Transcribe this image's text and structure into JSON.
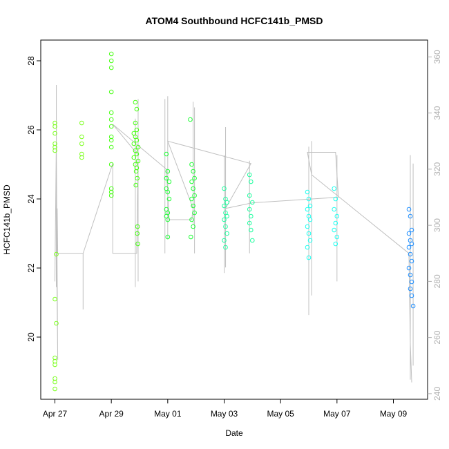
{
  "chart_data": {
    "type": "scatter",
    "title": "ATOM4 Southbound HCFC141b_PMSD",
    "xlabel": "Date",
    "ylabel": "HCFC141b_PMSD",
    "ylim": [
      18.2,
      28.6
    ],
    "y2lim": [
      238,
      366
    ],
    "y2label": "",
    "x_ticks": [
      "Apr 27",
      "Apr 29",
      "May 01",
      "May 03",
      "May 05",
      "May 07",
      "May 09"
    ],
    "y_ticks": [
      20,
      22,
      24,
      26,
      28
    ],
    "y2_ticks": [
      240,
      260,
      280,
      300,
      320,
      340,
      360
    ],
    "grid": false,
    "legend": "none",
    "colors": {
      "axis": "#000000",
      "right_axis": "#b0b0b0",
      "line": "#c0c0c0"
    },
    "series": [
      {
        "name": "",
        "color": "#7cff1f",
        "points": [
          {
            "x": 0.0,
            "y": 26.2
          },
          {
            "x": 0.0,
            "y": 26.1
          },
          {
            "x": 0.0,
            "y": 25.9
          },
          {
            "x": 0.0,
            "y": 25.6
          },
          {
            "x": 0.0,
            "y": 25.5
          },
          {
            "x": 0.0,
            "y": 25.4
          },
          {
            "x": 0.05,
            "y": 22.4
          },
          {
            "x": 0.0,
            "y": 21.1
          },
          {
            "x": 0.05,
            "y": 20.4
          },
          {
            "x": 0.0,
            "y": 19.4
          },
          {
            "x": 0.0,
            "y": 19.3
          },
          {
            "x": 0.0,
            "y": 19.2
          },
          {
            "x": 0.0,
            "y": 18.8
          },
          {
            "x": 0.0,
            "y": 18.7
          },
          {
            "x": 0.0,
            "y": 18.5
          },
          {
            "x": 0.95,
            "y": 26.2
          },
          {
            "x": 0.95,
            "y": 25.8
          },
          {
            "x": 0.95,
            "y": 25.6
          },
          {
            "x": 0.95,
            "y": 25.3
          },
          {
            "x": 0.95,
            "y": 25.2
          }
        ]
      },
      {
        "name": "",
        "color": "#48ff14",
        "points": [
          {
            "x": 2.0,
            "y": 28.2
          },
          {
            "x": 2.0,
            "y": 28.0
          },
          {
            "x": 2.0,
            "y": 27.8
          },
          {
            "x": 2.0,
            "y": 27.1
          },
          {
            "x": 2.0,
            "y": 26.5
          },
          {
            "x": 2.0,
            "y": 26.3
          },
          {
            "x": 2.0,
            "y": 26.1
          },
          {
            "x": 2.0,
            "y": 25.8
          },
          {
            "x": 2.0,
            "y": 25.7
          },
          {
            "x": 2.0,
            "y": 25.5
          },
          {
            "x": 2.0,
            "y": 25.0
          },
          {
            "x": 2.0,
            "y": 24.3
          },
          {
            "x": 2.0,
            "y": 24.2
          },
          {
            "x": 2.0,
            "y": 24.1
          },
          {
            "x": 2.85,
            "y": 26.8
          },
          {
            "x": 2.9,
            "y": 26.6
          },
          {
            "x": 2.85,
            "y": 26.2
          },
          {
            "x": 2.9,
            "y": 26.0
          },
          {
            "x": 2.8,
            "y": 25.9
          },
          {
            "x": 2.85,
            "y": 25.8
          },
          {
            "x": 2.9,
            "y": 25.7
          },
          {
            "x": 2.8,
            "y": 25.6
          },
          {
            "x": 2.95,
            "y": 25.5
          },
          {
            "x": 2.85,
            "y": 25.4
          },
          {
            "x": 2.9,
            "y": 25.3
          },
          {
            "x": 2.8,
            "y": 25.2
          },
          {
            "x": 2.95,
            "y": 25.1
          },
          {
            "x": 2.85,
            "y": 25.0
          },
          {
            "x": 2.9,
            "y": 24.9
          },
          {
            "x": 2.88,
            "y": 24.8
          },
          {
            "x": 2.92,
            "y": 24.6
          },
          {
            "x": 2.87,
            "y": 24.4
          },
          {
            "x": 2.93,
            "y": 23.2
          },
          {
            "x": 2.92,
            "y": 23.0
          },
          {
            "x": 2.94,
            "y": 22.7
          }
        ]
      },
      {
        "name": "",
        "color": "#1fff36",
        "points": [
          {
            "x": 3.95,
            "y": 25.3
          },
          {
            "x": 4.0,
            "y": 24.8
          },
          {
            "x": 3.95,
            "y": 24.6
          },
          {
            "x": 4.05,
            "y": 24.5
          },
          {
            "x": 3.95,
            "y": 24.3
          },
          {
            "x": 4.0,
            "y": 24.2
          },
          {
            "x": 4.05,
            "y": 24.0
          },
          {
            "x": 3.95,
            "y": 23.7
          },
          {
            "x": 4.0,
            "y": 23.6
          },
          {
            "x": 3.95,
            "y": 23.5
          },
          {
            "x": 4.0,
            "y": 23.4
          },
          {
            "x": 4.0,
            "y": 22.9
          },
          {
            "x": 4.8,
            "y": 26.3
          },
          {
            "x": 4.85,
            "y": 25.0
          },
          {
            "x": 4.9,
            "y": 24.8
          },
          {
            "x": 4.95,
            "y": 24.6
          },
          {
            "x": 4.85,
            "y": 24.5
          },
          {
            "x": 4.9,
            "y": 24.3
          },
          {
            "x": 4.95,
            "y": 24.1
          },
          {
            "x": 4.85,
            "y": 24.0
          },
          {
            "x": 4.9,
            "y": 23.8
          },
          {
            "x": 4.95,
            "y": 23.6
          },
          {
            "x": 4.85,
            "y": 23.4
          },
          {
            "x": 4.9,
            "y": 23.2
          },
          {
            "x": 4.82,
            "y": 22.9
          }
        ]
      },
      {
        "name": "",
        "color": "#1fffa0",
        "points": [
          {
            "x": 6.0,
            "y": 24.3
          },
          {
            "x": 6.05,
            "y": 24.0
          },
          {
            "x": 6.1,
            "y": 23.9
          },
          {
            "x": 6.0,
            "y": 23.8
          },
          {
            "x": 6.05,
            "y": 23.6
          },
          {
            "x": 6.1,
            "y": 23.5
          },
          {
            "x": 6.0,
            "y": 23.4
          },
          {
            "x": 6.05,
            "y": 23.2
          },
          {
            "x": 6.1,
            "y": 23.0
          },
          {
            "x": 6.0,
            "y": 22.8
          },
          {
            "x": 6.05,
            "y": 22.6
          },
          {
            "x": 6.9,
            "y": 24.7
          },
          {
            "x": 6.95,
            "y": 24.5
          },
          {
            "x": 6.9,
            "y": 24.1
          },
          {
            "x": 7.0,
            "y": 23.9
          },
          {
            "x": 6.9,
            "y": 23.7
          },
          {
            "x": 6.95,
            "y": 23.5
          },
          {
            "x": 6.9,
            "y": 23.3
          },
          {
            "x": 6.95,
            "y": 23.1
          },
          {
            "x": 7.0,
            "y": 22.8
          }
        ]
      },
      {
        "name": "",
        "color": "#1ffff0",
        "points": [
          {
            "x": 8.95,
            "y": 24.2
          },
          {
            "x": 9.0,
            "y": 24.0
          },
          {
            "x": 9.05,
            "y": 23.8
          },
          {
            "x": 8.95,
            "y": 23.7
          },
          {
            "x": 9.0,
            "y": 23.5
          },
          {
            "x": 9.05,
            "y": 23.4
          },
          {
            "x": 8.95,
            "y": 23.2
          },
          {
            "x": 9.0,
            "y": 23.0
          },
          {
            "x": 9.05,
            "y": 22.8
          },
          {
            "x": 8.95,
            "y": 22.6
          },
          {
            "x": 9.0,
            "y": 22.3
          },
          {
            "x": 9.9,
            "y": 24.3
          },
          {
            "x": 9.95,
            "y": 24.0
          },
          {
            "x": 9.9,
            "y": 23.7
          },
          {
            "x": 10.0,
            "y": 23.5
          },
          {
            "x": 9.95,
            "y": 23.3
          },
          {
            "x": 9.9,
            "y": 23.1
          },
          {
            "x": 10.0,
            "y": 22.9
          },
          {
            "x": 9.95,
            "y": 22.7
          }
        ]
      },
      {
        "name": "",
        "color": "#1f8fff",
        "points": [
          {
            "x": 12.55,
            "y": 23.7
          },
          {
            "x": 12.6,
            "y": 23.5
          },
          {
            "x": 12.65,
            "y": 23.1
          },
          {
            "x": 12.55,
            "y": 23.0
          },
          {
            "x": 12.6,
            "y": 22.8
          },
          {
            "x": 12.65,
            "y": 22.7
          },
          {
            "x": 12.55,
            "y": 22.6
          },
          {
            "x": 12.6,
            "y": 22.4
          },
          {
            "x": 12.65,
            "y": 22.2
          },
          {
            "x": 12.55,
            "y": 22.0
          },
          {
            "x": 12.6,
            "y": 21.8
          },
          {
            "x": 12.65,
            "y": 21.6
          },
          {
            "x": 12.6,
            "y": 21.4
          },
          {
            "x": 12.65,
            "y": 21.2
          },
          {
            "x": 12.7,
            "y": 20.9
          }
        ]
      }
    ],
    "secondary_line": {
      "color": "#c0c0c0",
      "path": [
        [
          0.0,
          280
        ],
        [
          0.05,
          330
        ],
        [
          0.1,
          252
        ],
        [
          0.05,
          298
        ],
        [
          0.08,
          306
        ],
        [
          0.1,
          290
        ],
        [
          1.0,
          290
        ],
        [
          1.0,
          270
        ],
        [
          1.0,
          290
        ],
        [
          2.05,
          322
        ],
        [
          2.05,
          290
        ],
        [
          2.9,
          290
        ],
        [
          2.95,
          325
        ],
        [
          2.05,
          336
        ],
        [
          3.95,
          320
        ],
        [
          4.05,
          302
        ],
        [
          4.85,
          302
        ],
        [
          4.9,
          306
        ],
        [
          4.0,
          330
        ],
        [
          6.95,
          322
        ],
        [
          6.05,
          306
        ],
        [
          7.0,
          308
        ],
        [
          10.05,
          310
        ],
        [
          9.95,
          326
        ],
        [
          8.95,
          326
        ],
        [
          9.1,
          318
        ],
        [
          12.55,
          290
        ],
        [
          12.6,
          258
        ],
        [
          12.65,
          244
        ]
      ],
      "spikes": [
        {
          "x": 0.05,
          "low": 278,
          "high": 350
        },
        {
          "x": 3.9,
          "low": 290,
          "high": 345
        },
        {
          "x": 4.0,
          "low": 295,
          "high": 346
        },
        {
          "x": 4.9,
          "low": 300,
          "high": 344
        },
        {
          "x": 4.95,
          "low": 290,
          "high": 342
        },
        {
          "x": 2.95,
          "low": 280,
          "high": 345
        },
        {
          "x": 2.85,
          "low": 278,
          "high": 338
        },
        {
          "x": 6.05,
          "low": 285,
          "high": 335
        },
        {
          "x": 6.0,
          "low": 283,
          "high": 325
        },
        {
          "x": 6.9,
          "low": 290,
          "high": 323
        },
        {
          "x": 9.0,
          "low": 268,
          "high": 328
        },
        {
          "x": 9.1,
          "low": 275,
          "high": 330
        },
        {
          "x": 10.0,
          "low": 280,
          "high": 325
        },
        {
          "x": 12.6,
          "low": 245,
          "high": 325
        },
        {
          "x": 12.7,
          "low": 250,
          "high": 322
        }
      ]
    }
  }
}
